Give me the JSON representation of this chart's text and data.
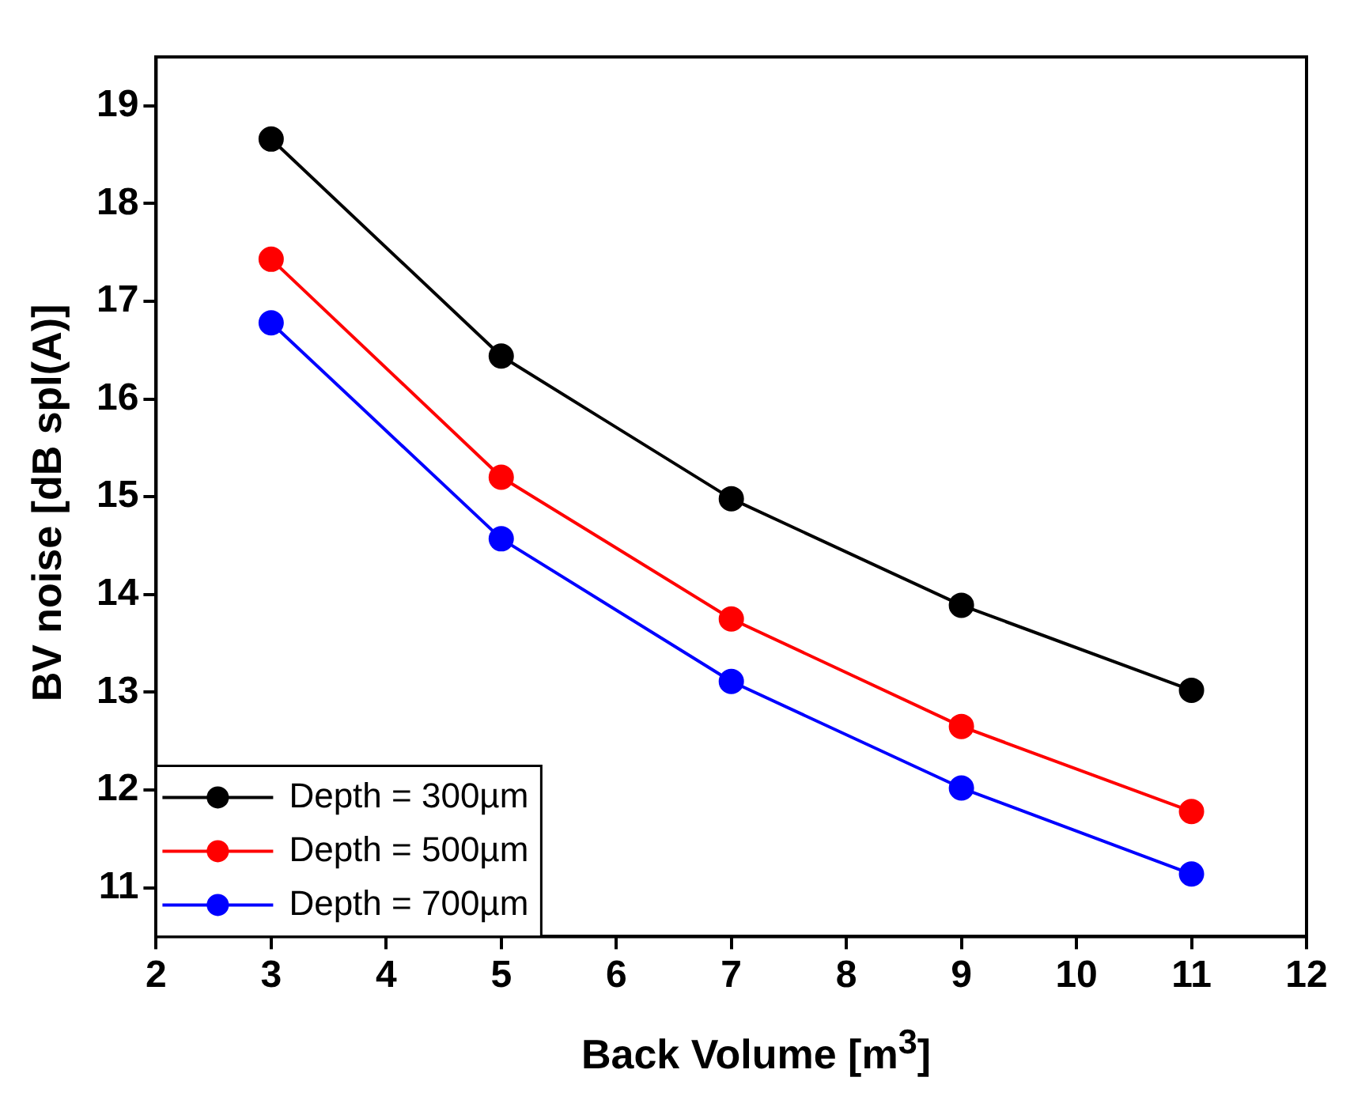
{
  "chart_data": {
    "type": "line",
    "xlabel": "Back Volume [m$^{3}$]",
    "ylabel": "BV noise [dB spl(A)]",
    "x": [
      3,
      5,
      7,
      9,
      11
    ],
    "series": [
      {
        "name": "Depth = 300µm",
        "color": "#000000",
        "values": [
          18.66,
          16.44,
          14.98,
          13.89,
          13.02
        ]
      },
      {
        "name": "Depth = 500µm",
        "color": "#ff0000",
        "values": [
          17.43,
          15.2,
          13.75,
          12.65,
          11.78
        ]
      },
      {
        "name": "Depth = 700µm",
        "color": "#0000ff",
        "values": [
          16.78,
          14.57,
          13.11,
          12.02,
          11.14
        ]
      }
    ],
    "xlim": [
      2,
      12
    ],
    "xticks": [
      2,
      3,
      4,
      5,
      6,
      7,
      8,
      9,
      10,
      11,
      12
    ],
    "ylim": [
      10.5,
      19.5
    ],
    "yticks": [
      11,
      12,
      13,
      14,
      15,
      16,
      17,
      18,
      19
    ],
    "grid": false,
    "legend": "bottom left",
    "marker": "circle",
    "line_style": "solid"
  }
}
